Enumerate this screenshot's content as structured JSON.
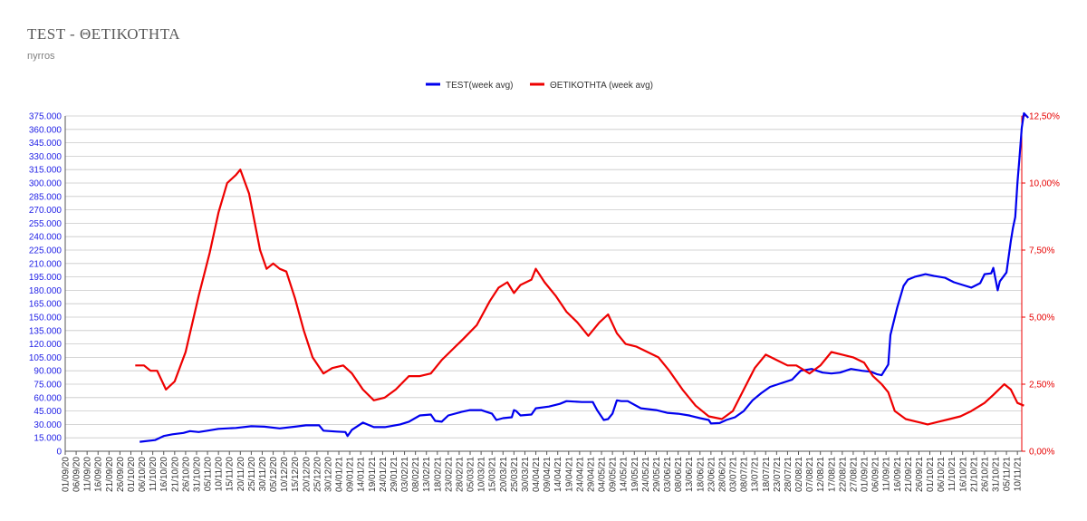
{
  "title": "TEST - ΘΕΤΙΚΟΤΗΤΑ",
  "subtitle": "nyrros",
  "colors": {
    "test": "#0000ee",
    "positivity": "#ee0000",
    "grid": "#c8c8c8"
  },
  "chart_data": {
    "type": "line",
    "title": "TEST - ΘΕΤΙΚΟΤΗΤΑ",
    "subtitle": "nyrros",
    "legend_position": "top-center",
    "grid": true,
    "left_axis": {
      "min": 0,
      "max": 375000,
      "step": 15000,
      "tick_labels": [
        "0",
        "15.000",
        "30.000",
        "45.000",
        "60.000",
        "75.000",
        "90.000",
        "105.000",
        "120.000",
        "135.000",
        "150.000",
        "165.000",
        "180.000",
        "195.000",
        "210.000",
        "225.000",
        "240.000",
        "255.000",
        "270.000",
        "285.000",
        "300.000",
        "315.000",
        "330.000",
        "345.000",
        "360.000",
        "375.000"
      ]
    },
    "right_axis": {
      "min": 0,
      "max": 12.5,
      "tick_values": [
        0,
        2.5,
        5,
        7.5,
        10,
        12.5
      ],
      "tick_labels": [
        "0,00%",
        "2,50%",
        "5,00%",
        "7,50%",
        "10,00%",
        "12,50%"
      ]
    },
    "x_axis": {
      "start": "2020-09-01",
      "end": "2021-11-12",
      "tick_labels": [
        "01/09/20",
        "06/09/20",
        "11/09/20",
        "16/09/20",
        "21/09/20",
        "26/09/20",
        "01/10/20",
        "06/10/20",
        "11/10/20",
        "16/10/20",
        "21/10/20",
        "26/10/20",
        "31/10/20",
        "05/11/20",
        "10/11/20",
        "15/11/20",
        "20/11/20",
        "25/11/20",
        "30/11/20",
        "05/12/20",
        "10/12/20",
        "15/12/20",
        "20/12/20",
        "25/12/20",
        "30/12/20",
        "04/01/21",
        "09/01/21",
        "14/01/21",
        "19/01/21",
        "24/01/21",
        "29/01/21",
        "03/02/21",
        "08/02/21",
        "13/02/21",
        "18/02/21",
        "23/02/21",
        "28/02/21",
        "05/03/21",
        "10/03/21",
        "15/03/21",
        "20/03/21",
        "25/03/21",
        "30/03/21",
        "04/04/21",
        "09/04/21",
        "14/04/21",
        "19/04/21",
        "24/04/21",
        "29/04/21",
        "04/05/21",
        "09/05/21",
        "14/05/21",
        "19/05/21",
        "24/05/21",
        "29/05/21",
        "03/06/21",
        "08/06/21",
        "13/06/21",
        "18/06/21",
        "23/06/21",
        "28/06/21",
        "03/07/21",
        "08/07/21",
        "13/07/21",
        "18/07/21",
        "23/07/21",
        "28/07/21",
        "02/08/21",
        "07/08/21",
        "12/08/21",
        "17/08/21",
        "22/08/21",
        "27/08/21",
        "01/09/21",
        "06/09/21",
        "11/09/21",
        "16/09/21",
        "21/09/21",
        "26/09/21",
        "01/10/21",
        "06/10/21",
        "11/10/21",
        "16/10/21",
        "21/10/21",
        "26/10/21",
        "31/10/21",
        "05/11/21",
        "10/11/21"
      ]
    },
    "series": [
      {
        "name": "TEST(week avg)",
        "axis": "left",
        "points": [
          [
            "2020-10-05",
            10500
          ],
          [
            "2020-10-12",
            12500
          ],
          [
            "2020-10-16",
            17000
          ],
          [
            "2020-10-20",
            19000
          ],
          [
            "2020-10-25",
            20500
          ],
          [
            "2020-10-28",
            22500
          ],
          [
            "2020-11-01",
            21500
          ],
          [
            "2020-11-05",
            23000
          ],
          [
            "2020-11-10",
            25000
          ],
          [
            "2020-11-18",
            26000
          ],
          [
            "2020-11-25",
            28000
          ],
          [
            "2020-12-01",
            27500
          ],
          [
            "2020-12-08",
            25500
          ],
          [
            "2020-12-15",
            27500
          ],
          [
            "2020-12-20",
            29000
          ],
          [
            "2020-12-26",
            29000
          ],
          [
            "2020-12-28",
            23000
          ],
          [
            "2021-01-03",
            22000
          ],
          [
            "2021-01-07",
            21500
          ],
          [
            "2021-01-08",
            17000
          ],
          [
            "2021-01-10",
            24000
          ],
          [
            "2021-01-15",
            32000
          ],
          [
            "2021-01-20",
            27000
          ],
          [
            "2021-01-25",
            27000
          ],
          [
            "2021-02-01",
            30000
          ],
          [
            "2021-02-05",
            33000
          ],
          [
            "2021-02-10",
            40000
          ],
          [
            "2021-02-15",
            41000
          ],
          [
            "2021-02-17",
            34000
          ],
          [
            "2021-02-20",
            33000
          ],
          [
            "2021-02-23",
            40000
          ],
          [
            "2021-03-01",
            44000
          ],
          [
            "2021-03-05",
            46000
          ],
          [
            "2021-03-10",
            46000
          ],
          [
            "2021-03-15",
            42000
          ],
          [
            "2021-03-17",
            35000
          ],
          [
            "2021-03-20",
            37000
          ],
          [
            "2021-03-24",
            38000
          ],
          [
            "2021-03-25",
            46000
          ],
          [
            "2021-03-26",
            45000
          ],
          [
            "2021-03-28",
            40000
          ],
          [
            "2021-04-02",
            41000
          ],
          [
            "2021-04-04",
            48000
          ],
          [
            "2021-04-10",
            50000
          ],
          [
            "2021-04-15",
            53000
          ],
          [
            "2021-04-18",
            56000
          ],
          [
            "2021-04-25",
            55000
          ],
          [
            "2021-04-30",
            55000
          ],
          [
            "2021-05-02",
            46000
          ],
          [
            "2021-05-05",
            35000
          ],
          [
            "2021-05-07",
            36000
          ],
          [
            "2021-05-09",
            42000
          ],
          [
            "2021-05-11",
            57000
          ],
          [
            "2021-05-13",
            56000
          ],
          [
            "2021-05-16",
            56000
          ],
          [
            "2021-05-22",
            48000
          ],
          [
            "2021-05-29",
            46000
          ],
          [
            "2021-06-03",
            43000
          ],
          [
            "2021-06-08",
            42000
          ],
          [
            "2021-06-13",
            40000
          ],
          [
            "2021-06-18",
            37000
          ],
          [
            "2021-06-22",
            35000
          ],
          [
            "2021-06-23",
            31000
          ],
          [
            "2021-06-27",
            31500
          ],
          [
            "2021-06-30",
            35000
          ],
          [
            "2021-07-04",
            38000
          ],
          [
            "2021-07-08",
            45000
          ],
          [
            "2021-07-12",
            57000
          ],
          [
            "2021-07-16",
            65000
          ],
          [
            "2021-07-20",
            72000
          ],
          [
            "2021-07-25",
            76000
          ],
          [
            "2021-07-30",
            80000
          ],
          [
            "2021-08-03",
            90000
          ],
          [
            "2021-08-08",
            92000
          ],
          [
            "2021-08-13",
            88000
          ],
          [
            "2021-08-17",
            87000
          ],
          [
            "2021-08-21",
            88000
          ],
          [
            "2021-08-26",
            92000
          ],
          [
            "2021-08-31",
            90000
          ],
          [
            "2021-09-04",
            89000
          ],
          [
            "2021-09-07",
            86000
          ],
          [
            "2021-09-09",
            85000
          ],
          [
            "2021-09-12",
            97000
          ],
          [
            "2021-09-13",
            130000
          ],
          [
            "2021-09-16",
            160000
          ],
          [
            "2021-09-19",
            185000
          ],
          [
            "2021-09-21",
            192000
          ],
          [
            "2021-09-24",
            195000
          ],
          [
            "2021-09-29",
            198000
          ],
          [
            "2021-10-03",
            196000
          ],
          [
            "2021-10-08",
            194000
          ],
          [
            "2021-10-12",
            189000
          ],
          [
            "2021-10-16",
            186000
          ],
          [
            "2021-10-20",
            183000
          ],
          [
            "2021-10-24",
            188000
          ],
          [
            "2021-10-26",
            198000
          ],
          [
            "2021-10-29",
            199000
          ],
          [
            "2021-10-30",
            205000
          ],
          [
            "2021-11-01",
            180000
          ],
          [
            "2021-11-02",
            190000
          ],
          [
            "2021-11-05",
            200000
          ],
          [
            "2021-11-07",
            235000
          ],
          [
            "2021-11-08",
            250000
          ],
          [
            "2021-11-09",
            262000
          ],
          [
            "2021-11-10",
            300000
          ],
          [
            "2021-11-11",
            330000
          ],
          [
            "2021-11-12",
            362000
          ],
          [
            "2021-11-13",
            378000
          ],
          [
            "2021-11-15",
            373000
          ]
        ]
      },
      {
        "name": "ΘΕΤΙΚΟΤΗΤΑ (week avg)",
        "axis": "right",
        "points": [
          [
            "2020-10-03",
            3.2
          ],
          [
            "2020-10-07",
            3.2
          ],
          [
            "2020-10-10",
            3.0
          ],
          [
            "2020-10-13",
            3.0
          ],
          [
            "2020-10-17",
            2.3
          ],
          [
            "2020-10-21",
            2.6
          ],
          [
            "2020-10-26",
            3.7
          ],
          [
            "2020-11-01",
            5.8
          ],
          [
            "2020-11-06",
            7.4
          ],
          [
            "2020-11-10",
            8.9
          ],
          [
            "2020-11-14",
            10.0
          ],
          [
            "2020-11-18",
            10.3
          ],
          [
            "2020-11-20",
            10.5
          ],
          [
            "2020-11-24",
            9.6
          ],
          [
            "2020-11-29",
            7.5
          ],
          [
            "2020-12-02",
            6.8
          ],
          [
            "2020-12-05",
            7.0
          ],
          [
            "2020-12-08",
            6.8
          ],
          [
            "2020-12-11",
            6.7
          ],
          [
            "2020-12-15",
            5.7
          ],
          [
            "2020-12-19",
            4.5
          ],
          [
            "2020-12-23",
            3.5
          ],
          [
            "2020-12-28",
            2.9
          ],
          [
            "2021-01-01",
            3.1
          ],
          [
            "2021-01-06",
            3.2
          ],
          [
            "2021-01-10",
            2.9
          ],
          [
            "2021-01-15",
            2.3
          ],
          [
            "2021-01-20",
            1.9
          ],
          [
            "2021-01-25",
            2.0
          ],
          [
            "2021-01-30",
            2.3
          ],
          [
            "2021-02-05",
            2.8
          ],
          [
            "2021-02-10",
            2.8
          ],
          [
            "2021-02-15",
            2.9
          ],
          [
            "2021-02-20",
            3.4
          ],
          [
            "2021-02-25",
            3.8
          ],
          [
            "2021-03-02",
            4.2
          ],
          [
            "2021-03-08",
            4.7
          ],
          [
            "2021-03-14",
            5.6
          ],
          [
            "2021-03-18",
            6.1
          ],
          [
            "2021-03-22",
            6.3
          ],
          [
            "2021-03-25",
            5.9
          ],
          [
            "2021-03-28",
            6.2
          ],
          [
            "2021-04-02",
            6.4
          ],
          [
            "2021-04-04",
            6.8
          ],
          [
            "2021-04-08",
            6.3
          ],
          [
            "2021-04-13",
            5.8
          ],
          [
            "2021-04-18",
            5.2
          ],
          [
            "2021-04-23",
            4.8
          ],
          [
            "2021-04-28",
            4.3
          ],
          [
            "2021-05-03",
            4.8
          ],
          [
            "2021-05-07",
            5.1
          ],
          [
            "2021-05-11",
            4.4
          ],
          [
            "2021-05-15",
            4.0
          ],
          [
            "2021-05-20",
            3.9
          ],
          [
            "2021-05-25",
            3.7
          ],
          [
            "2021-05-30",
            3.5
          ],
          [
            "2021-06-04",
            3.0
          ],
          [
            "2021-06-10",
            2.3
          ],
          [
            "2021-06-16",
            1.7
          ],
          [
            "2021-06-22",
            1.3
          ],
          [
            "2021-06-28",
            1.2
          ],
          [
            "2021-07-03",
            1.5
          ],
          [
            "2021-07-08",
            2.3
          ],
          [
            "2021-07-13",
            3.1
          ],
          [
            "2021-07-18",
            3.6
          ],
          [
            "2021-07-23",
            3.4
          ],
          [
            "2021-07-28",
            3.2
          ],
          [
            "2021-08-01",
            3.2
          ],
          [
            "2021-08-03",
            3.1
          ],
          [
            "2021-08-07",
            2.9
          ],
          [
            "2021-08-12",
            3.2
          ],
          [
            "2021-08-17",
            3.7
          ],
          [
            "2021-08-22",
            3.6
          ],
          [
            "2021-08-27",
            3.5
          ],
          [
            "2021-09-01",
            3.3
          ],
          [
            "2021-09-05",
            2.8
          ],
          [
            "2021-09-09",
            2.5
          ],
          [
            "2021-09-12",
            2.2
          ],
          [
            "2021-09-15",
            1.5
          ],
          [
            "2021-09-20",
            1.2
          ],
          [
            "2021-09-25",
            1.1
          ],
          [
            "2021-09-30",
            1.0
          ],
          [
            "2021-10-05",
            1.1
          ],
          [
            "2021-10-10",
            1.2
          ],
          [
            "2021-10-15",
            1.3
          ],
          [
            "2021-10-20",
            1.5
          ],
          [
            "2021-10-26",
            1.8
          ],
          [
            "2021-10-30",
            2.1
          ],
          [
            "2021-11-04",
            2.5
          ],
          [
            "2021-11-07",
            2.3
          ],
          [
            "2021-11-10",
            1.8
          ],
          [
            "2021-11-13",
            1.7
          ]
        ]
      }
    ]
  }
}
